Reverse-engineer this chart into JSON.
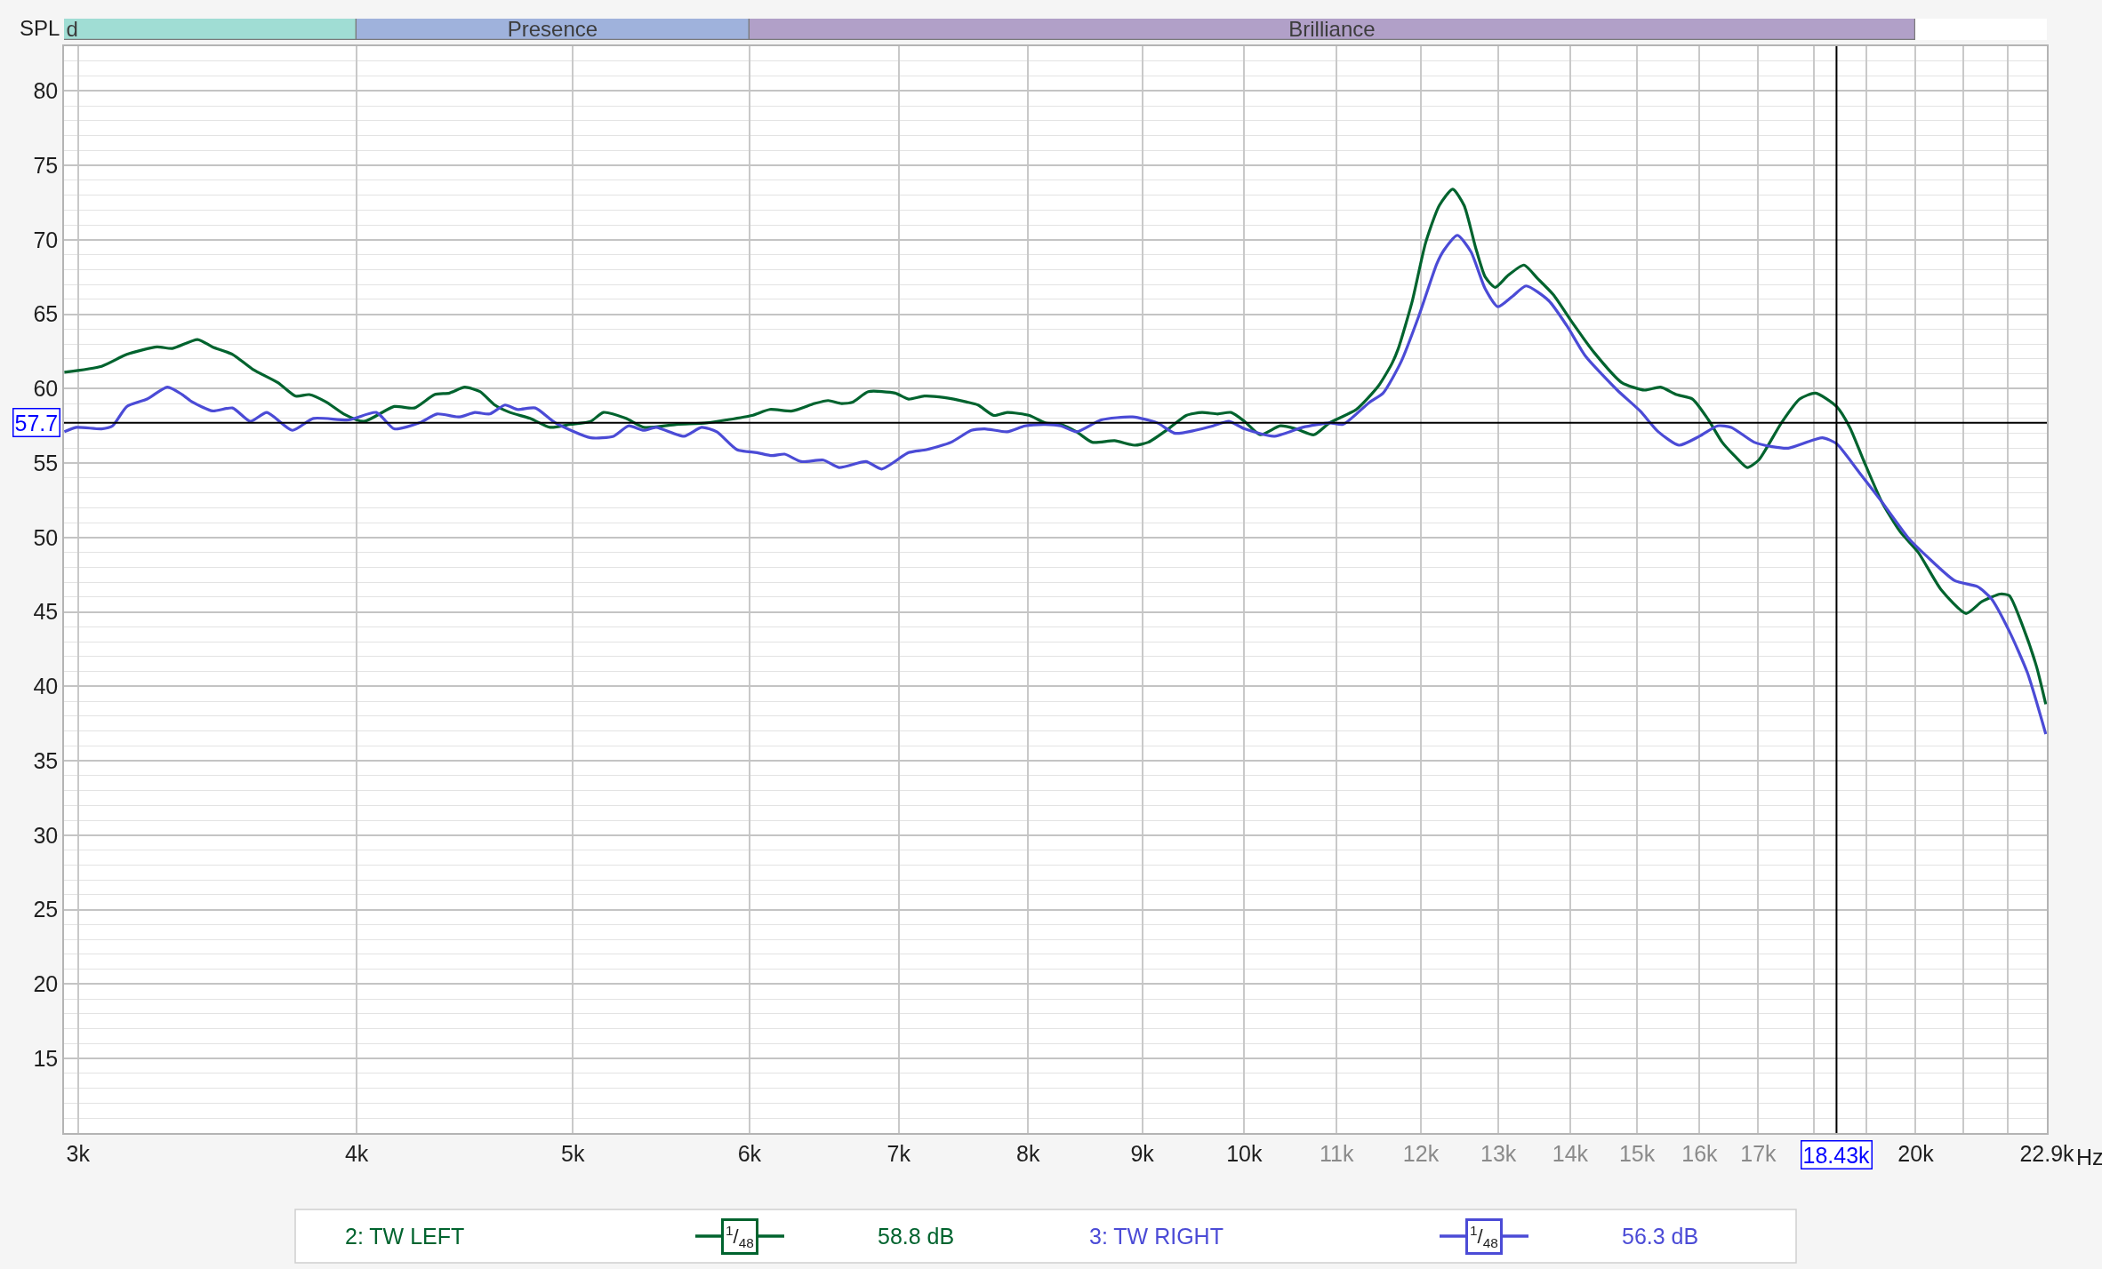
{
  "chart_data": [
    {
      "type": "bar",
      "orientation": "horizontal",
      "log": "x",
      "xlim": [
        2957,
        22900
      ],
      "tick_labels": false,
      "categories": [
        null
      ],
      "series": [
        {
          "name": "d",
          "color": "#a0ddd4",
          "base": [
            2957
          ],
          "values": [
            1043
          ]
        },
        {
          "name": "Presence",
          "color": "#9fb2dc",
          "base": [
            4000
          ],
          "values": [
            2000
          ]
        },
        {
          "name": "Brilliance",
          "color": "#b1a0c8",
          "base": [
            6000
          ],
          "values": [
            14000
          ]
        }
      ]
    },
    {
      "type": "line",
      "ylabel": "SPL",
      "xlabel": "Hz",
      "log": "x",
      "xlim": [
        2957,
        22900
      ],
      "xticks": [
        {
          "value": 3000,
          "label": "3k"
        },
        {
          "value": 4000,
          "label": "4k"
        },
        {
          "value": 5000,
          "label": "5k"
        },
        {
          "value": 6000,
          "label": "6k"
        },
        {
          "value": 7000,
          "label": "7k"
        },
        {
          "value": 8000,
          "label": "8k"
        },
        {
          "value": 9000,
          "label": "9k"
        },
        {
          "value": 10000,
          "label": "10k"
        },
        {
          "value": 11000,
          "label": "11k"
        },
        {
          "value": 12000,
          "label": "12k"
        },
        {
          "value": 13000,
          "label": "13k"
        },
        {
          "value": 14000,
          "label": "14k"
        },
        {
          "value": 15000,
          "label": "15k"
        },
        {
          "value": 16000,
          "label": "16k"
        },
        {
          "value": 17000,
          "label": "17k"
        },
        {
          "value": 18000,
          "label": null
        },
        {
          "value": 19000,
          "label": null
        },
        {
          "value": 20000,
          "label": "20k"
        },
        {
          "value": 21000,
          "label": null
        },
        {
          "value": 22000,
          "label": null
        },
        {
          "value": 22900,
          "label": "22.9k"
        }
      ],
      "ylim": [
        10,
        83
      ],
      "yticks": [
        15,
        20,
        25,
        30,
        35,
        40,
        45,
        50,
        55,
        60,
        65,
        70,
        75,
        80
      ],
      "grid": true,
      "legend": "bottom",
      "marker": "none",
      "line_style": "solid",
      "series": [
        {
          "name": "2: TW LEFT",
          "color": "#00632e",
          "x": [
            2958,
            3074,
            3155,
            3255,
            3307,
            3394,
            3447,
            3519,
            3593,
            3688,
            3756,
            3809,
            3876,
            3947,
            4030,
            4158,
            4245,
            4335,
            4402,
            4472,
            4543,
            4613,
            4686,
            4784,
            4885,
            4988,
            5093,
            5160,
            5282,
            5380,
            5564,
            5741,
            5861,
            6016,
            6128,
            6272,
            6418,
            6508,
            6598,
            6675,
            6783,
            6974,
            7071,
            7186,
            7338,
            7509,
            7597,
            7721,
            7829,
            8011,
            8142,
            8275,
            8410,
            8547,
            8747,
            8931,
            9057,
            9247,
            9419,
            9573,
            9729,
            9865,
            10003,
            10166,
            10380,
            10548,
            10745,
            10920,
            11226,
            11488,
            11648,
            11724,
            11890,
            12059,
            12230,
            12401,
            12548,
            12696,
            12824,
            12957,
            13129,
            13347,
            13536,
            13760,
            14021,
            14355,
            14767,
            15118,
            15369,
            15624,
            15884,
            16148,
            16378,
            16611,
            16808,
            17007,
            17411,
            17742,
            18036,
            18430,
            18684,
            18950,
            19311,
            19679,
            20053,
            20530,
            21067,
            21416,
            21823,
            22029,
            22342,
            22660,
            22874
          ],
          "values": [
            61.1,
            61.5,
            62.3,
            62.8,
            62.7,
            63.3,
            62.8,
            62.3,
            61.3,
            60.4,
            59.5,
            59.6,
            59.1,
            58.3,
            57.8,
            58.8,
            58.7,
            59.6,
            59.7,
            60.1,
            59.8,
            58.9,
            58.4,
            58.0,
            57.4,
            57.6,
            57.8,
            58.4,
            58.0,
            57.4,
            57.6,
            57.7,
            57.9,
            58.2,
            58.6,
            58.5,
            59.0,
            59.2,
            59.0,
            59.1,
            59.8,
            59.7,
            59.3,
            59.5,
            59.4,
            59.1,
            58.9,
            58.2,
            58.4,
            58.2,
            57.7,
            57.6,
            57.1,
            56.4,
            56.5,
            56.2,
            56.4,
            57.3,
            58.2,
            58.4,
            58.3,
            58.4,
            57.8,
            56.9,
            57.5,
            57.3,
            56.9,
            57.7,
            58.6,
            60.2,
            61.7,
            62.7,
            65.8,
            69.8,
            72.3,
            73.4,
            72.3,
            69.5,
            67.5,
            66.8,
            67.6,
            68.3,
            67.4,
            66.3,
            64.5,
            62.4,
            60.4,
            59.9,
            60.1,
            59.6,
            59.3,
            57.9,
            56.4,
            55.4,
            54.7,
            55.2,
            57.7,
            59.3,
            59.7,
            58.8,
            57.4,
            55.2,
            52.4,
            50.4,
            49.0,
            46.5,
            44.9,
            45.7,
            46.2,
            46.1,
            44.0,
            41.3,
            38.8
          ]
        },
        {
          "name": "3: TW RIGHT",
          "color": "#4b4bd6",
          "x": [
            2958,
            2995,
            3074,
            3109,
            3155,
            3222,
            3290,
            3341,
            3376,
            3447,
            3519,
            3584,
            3646,
            3743,
            3825,
            3967,
            4082,
            4158,
            4268,
            4346,
            4449,
            4519,
            4589,
            4662,
            4723,
            4810,
            4911,
            5093,
            5214,
            5296,
            5380,
            5449,
            5608,
            5711,
            5801,
            5923,
            6047,
            6142,
            6222,
            6329,
            6476,
            6582,
            6767,
            6878,
            7071,
            7203,
            7389,
            7544,
            7650,
            7829,
            7974,
            8142,
            8275,
            8410,
            8627,
            8911,
            9141,
            9311,
            9506,
            9684,
            9843,
            10003,
            10309,
            10621,
            10920,
            11073,
            11383,
            11541,
            11757,
            11976,
            12200,
            12289,
            12461,
            12636,
            12824,
            12993,
            13190,
            13377,
            13695,
            13955,
            14220,
            14697,
            15047,
            15333,
            15662,
            15997,
            16301,
            16533,
            16927,
            17248,
            17535,
            18163,
            18430,
            18861,
            19311,
            19866,
            20243,
            20823,
            21318,
            21621,
            22029,
            22447,
            22874
          ],
          "values": [
            57.1,
            57.4,
            57.3,
            57.5,
            58.8,
            59.3,
            60.1,
            59.6,
            59.1,
            58.5,
            58.7,
            57.8,
            58.4,
            57.2,
            58.0,
            57.9,
            58.4,
            57.3,
            57.7,
            58.3,
            58.1,
            58.4,
            58.3,
            58.9,
            58.6,
            58.7,
            57.7,
            56.7,
            56.8,
            57.5,
            57.2,
            57.4,
            56.8,
            57.4,
            57.1,
            55.9,
            55.7,
            55.5,
            55.6,
            55.1,
            55.2,
            54.7,
            55.1,
            54.6,
            55.7,
            55.9,
            56.4,
            57.2,
            57.3,
            57.1,
            57.5,
            57.6,
            57.5,
            57.1,
            57.9,
            58.1,
            57.7,
            57.0,
            57.2,
            57.5,
            57.8,
            57.3,
            56.8,
            57.4,
            57.7,
            57.6,
            59.1,
            59.7,
            61.8,
            64.9,
            68.4,
            69.3,
            70.3,
            69.2,
            66.7,
            65.5,
            66.2,
            66.9,
            65.9,
            64.2,
            62.2,
            59.9,
            58.5,
            57.1,
            56.2,
            56.8,
            57.5,
            57.4,
            56.4,
            56.1,
            56.0,
            56.7,
            56.3,
            54.4,
            52.4,
            49.9,
            48.7,
            47.1,
            46.7,
            45.9,
            43.7,
            40.9,
            36.8
          ]
        }
      ],
      "ref_lines": [
        {
          "axis": "y",
          "value": 57.7,
          "label": "57.7",
          "color": "#000000"
        },
        {
          "axis": "x",
          "value": 18430,
          "label": "18.43k",
          "color": "#000000"
        }
      ],
      "annotations": [
        "$^{1}$/$_{48}$",
        "58.8 dB",
        "$^{1}$/$_{48}$",
        "56.3 dB"
      ]
    }
  ]
}
